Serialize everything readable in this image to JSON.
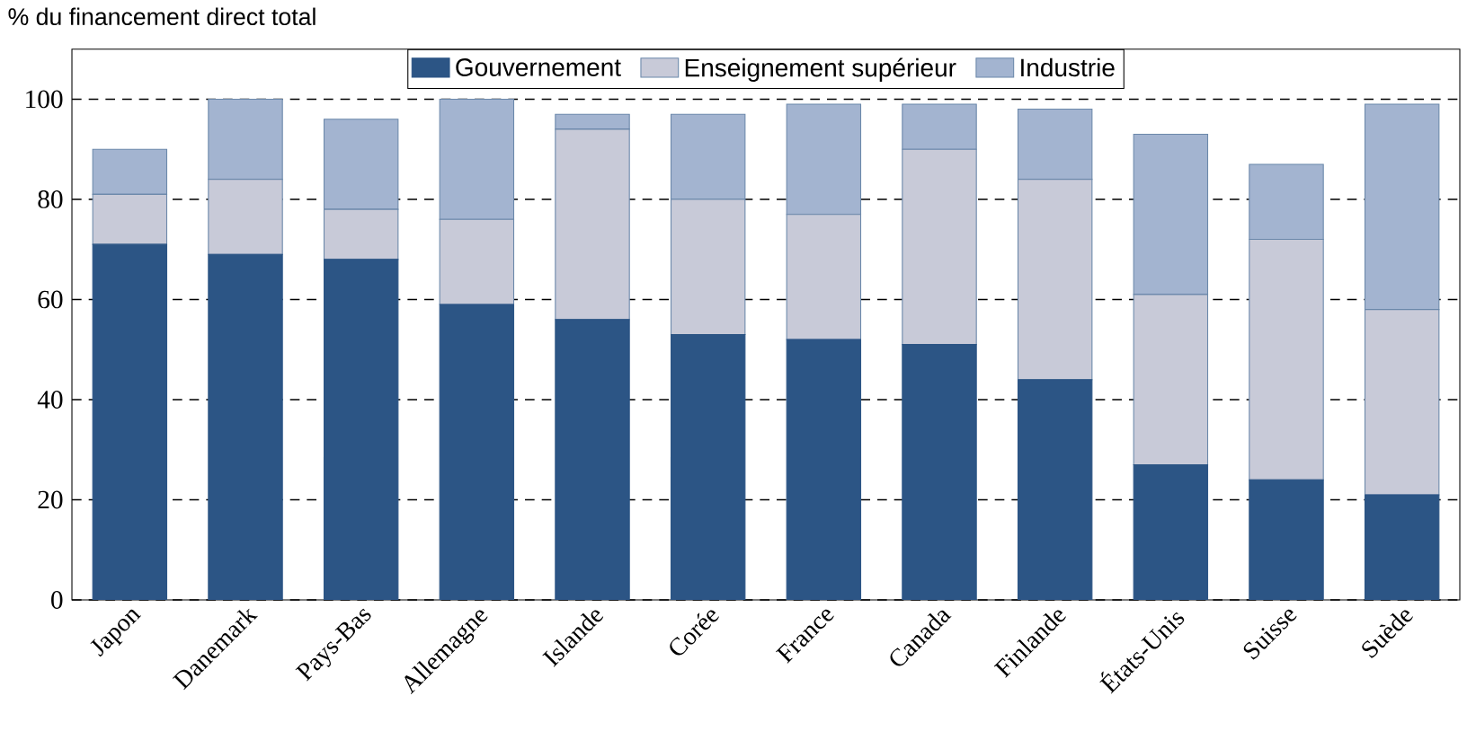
{
  "chart_data": {
    "type": "bar",
    "stacked": true,
    "ylabel": "% du financement direct total",
    "categories": [
      "Japon",
      "Danemark",
      "Pays-Bas",
      "Allemagne",
      "Islande",
      "Corée",
      "France",
      "Canada",
      "Finlande",
      "États-Unis",
      "Suisse",
      "Suède"
    ],
    "series": [
      {
        "name": "Gouvernement",
        "color": "#2c5585",
        "values": [
          71,
          69,
          68,
          59,
          56,
          53,
          52,
          51,
          44,
          27,
          24,
          21
        ]
      },
      {
        "name": "Enseignement supérieur",
        "color": "#c8cad8",
        "values": [
          10,
          15,
          10,
          17,
          38,
          27,
          25,
          39,
          40,
          34,
          48,
          37
        ]
      },
      {
        "name": "Industrie",
        "color": "#a3b4d0",
        "values": [
          9,
          16,
          18,
          24,
          3,
          17,
          22,
          9,
          14,
          32,
          15,
          41
        ]
      }
    ],
    "ylim": [
      0,
      110
    ],
    "yticks": [
      0,
      20,
      40,
      60,
      80,
      100
    ],
    "grid": "y",
    "legend": "top"
  }
}
